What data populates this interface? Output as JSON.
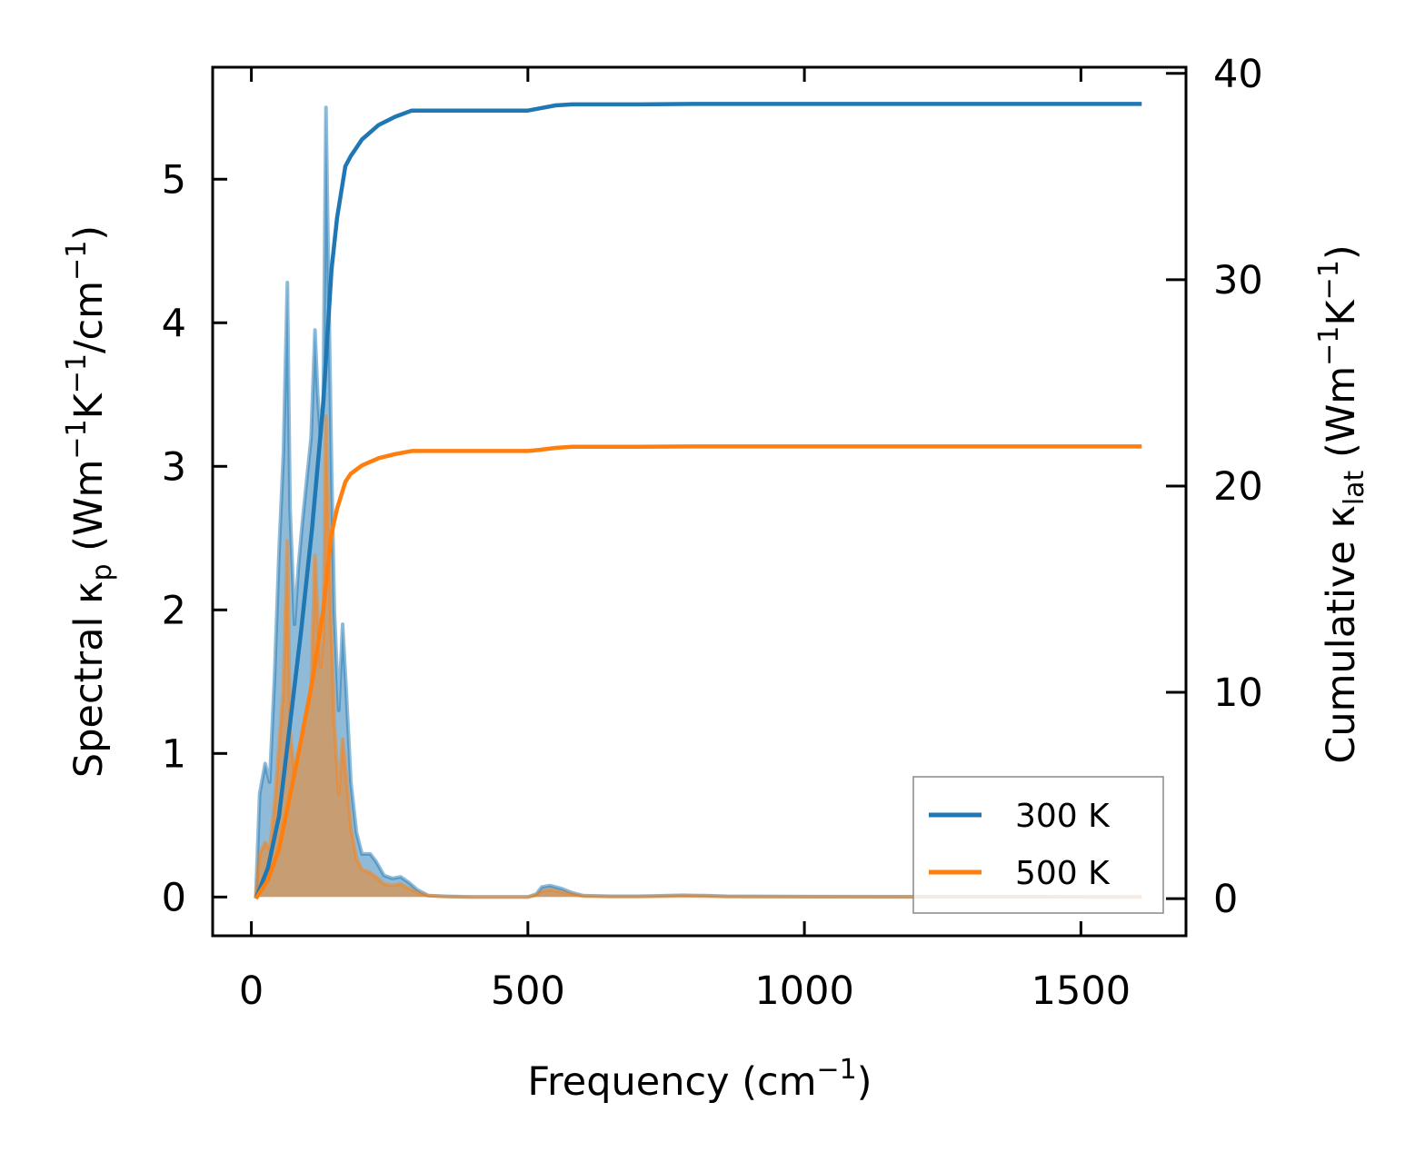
{
  "chart_data": {
    "type": "line",
    "xlabel": "Frequency (cm",
    "xlabel_sup": "−1",
    "xlabel_end": ")",
    "ylabel_left_pre": "Spectral κ",
    "ylabel_left_sub": "p",
    "ylabel_left_mid": " (Wm",
    "ylabel_left_sup1": "−1",
    "ylabel_left_mid2": "K",
    "ylabel_left_sup2": "−1",
    "ylabel_left_mid3": "/cm",
    "ylabel_left_sup3": "−1",
    "ylabel_left_end": ")",
    "ylabel_right_pre": "Cumulative κ",
    "ylabel_right_sub": "lat",
    "ylabel_right_mid": " (Wm",
    "ylabel_right_sup1": "−1",
    "ylabel_right_mid2": "K",
    "ylabel_right_sup2": "−1",
    "ylabel_right_end": ")",
    "xlim": [
      -70,
      1690
    ],
    "ylim_left": [
      -0.27,
      5.78
    ],
    "ylim_right": [
      -1.8,
      40.3
    ],
    "x_ticks": [
      0,
      500,
      1000,
      1500
    ],
    "x_tick_labels": [
      "0",
      "500",
      "1000",
      "1500"
    ],
    "y_left_ticks": [
      0,
      1,
      2,
      3,
      4,
      5
    ],
    "y_left_tick_labels": [
      "0",
      "1",
      "2",
      "3",
      "4",
      "5"
    ],
    "y_right_ticks": [
      0,
      10,
      20,
      30,
      40
    ],
    "y_right_tick_labels": [
      "0",
      "10",
      "20",
      "30",
      "40"
    ],
    "grid": false,
    "legend_position": "lower-right",
    "series": [
      {
        "name": "300 K",
        "color": "#1f77b4",
        "spectral": {
          "x": [
            8,
            15,
            25,
            33,
            42,
            50,
            58,
            65,
            70,
            78,
            85,
            92,
            100,
            108,
            115,
            120,
            125,
            130,
            135,
            140,
            145,
            150,
            158,
            165,
            172,
            180,
            190,
            200,
            215,
            225,
            240,
            255,
            270,
            285,
            300,
            320,
            350,
            400,
            450,
            500,
            515,
            525,
            540,
            560,
            580,
            600,
            650,
            700,
            780,
            820,
            860,
            1000,
            1200,
            1400,
            1610
          ],
          "y": [
            0.0,
            0.72,
            0.93,
            0.8,
            1.55,
            2.4,
            3.1,
            4.28,
            2.7,
            1.9,
            2.3,
            2.6,
            2.9,
            3.2,
            3.95,
            3.5,
            3.2,
            3.5,
            5.5,
            4.2,
            3.0,
            2.0,
            1.3,
            1.9,
            1.4,
            0.8,
            0.45,
            0.3,
            0.3,
            0.25,
            0.15,
            0.13,
            0.14,
            0.1,
            0.05,
            0.01,
            0.005,
            0.0,
            0.0,
            0.0,
            0.02,
            0.07,
            0.08,
            0.06,
            0.03,
            0.01,
            0.005,
            0.005,
            0.012,
            0.01,
            0.005,
            0.003,
            0.002,
            0.002,
            0.0
          ]
        },
        "cumulative": {
          "x": [
            8,
            30,
            50,
            70,
            90,
            110,
            130,
            145,
            155,
            170,
            180,
            200,
            230,
            260,
            290,
            310,
            350,
            400,
            500,
            520,
            550,
            580,
            600,
            700,
            800,
            1000,
            1200,
            1400,
            1610
          ],
          "y": [
            0.0,
            1.5,
            4.0,
            8.5,
            13.0,
            18.0,
            24.0,
            30.5,
            33.0,
            35.5,
            36.0,
            36.8,
            37.5,
            37.9,
            38.2,
            38.2,
            38.2,
            38.2,
            38.2,
            38.3,
            38.45,
            38.5,
            38.5,
            38.5,
            38.52,
            38.52,
            38.52,
            38.52,
            38.52
          ]
        }
      },
      {
        "name": "500 K",
        "color": "#ff7f0e",
        "spectral": {
          "x": [
            8,
            15,
            25,
            33,
            42,
            50,
            58,
            65,
            70,
            78,
            85,
            92,
            100,
            108,
            115,
            120,
            125,
            130,
            135,
            140,
            145,
            150,
            158,
            165,
            172,
            180,
            190,
            200,
            215,
            225,
            240,
            255,
            270,
            285,
            300,
            320,
            350,
            400,
            450,
            500,
            515,
            525,
            540,
            560,
            580,
            600,
            650,
            700,
            780,
            820,
            860,
            1000,
            1200,
            1400,
            1610
          ],
          "y": [
            0.0,
            0.3,
            0.38,
            0.33,
            0.65,
            1.05,
            1.45,
            2.48,
            1.15,
            0.85,
            1.0,
            1.15,
            1.3,
            1.45,
            2.38,
            1.95,
            1.6,
            1.8,
            3.35,
            2.5,
            1.8,
            1.2,
            0.72,
            1.1,
            0.82,
            0.48,
            0.27,
            0.19,
            0.17,
            0.14,
            0.09,
            0.08,
            0.09,
            0.06,
            0.03,
            0.01,
            0.003,
            0.0,
            0.0,
            0.0,
            0.012,
            0.04,
            0.05,
            0.035,
            0.02,
            0.006,
            0.003,
            0.003,
            0.007,
            0.006,
            0.003,
            0.002,
            0.001,
            0.001,
            0.0
          ]
        },
        "cumulative": {
          "x": [
            8,
            30,
            50,
            70,
            90,
            110,
            130,
            145,
            155,
            170,
            180,
            200,
            230,
            260,
            290,
            310,
            350,
            400,
            500,
            520,
            550,
            580,
            600,
            700,
            800,
            1000,
            1200,
            1400,
            1610
          ],
          "y": [
            0.0,
            0.9,
            2.4,
            5.0,
            7.7,
            10.5,
            14.0,
            17.7,
            18.9,
            20.2,
            20.6,
            21.0,
            21.35,
            21.55,
            21.7,
            21.7,
            21.7,
            21.7,
            21.7,
            21.75,
            21.85,
            21.9,
            21.9,
            21.9,
            21.92,
            21.92,
            21.92,
            21.92,
            21.92
          ]
        }
      }
    ]
  }
}
